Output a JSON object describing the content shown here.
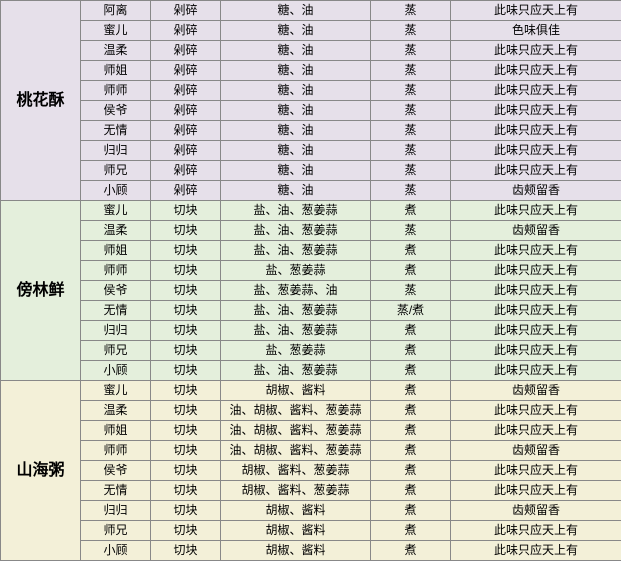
{
  "groups": [
    {
      "dish": "桃花酥",
      "bgClass": "bg-purple",
      "rows": [
        {
          "c1": "阿离",
          "c2": "剁碎",
          "c3": "糖、油",
          "c4": "蒸",
          "c5": "此味只应天上有"
        },
        {
          "c1": "蜜儿",
          "c2": "剁碎",
          "c3": "糖、油",
          "c4": "蒸",
          "c5": "色味俱佳"
        },
        {
          "c1": "温柔",
          "c2": "剁碎",
          "c3": "糖、油",
          "c4": "蒸",
          "c5": "此味只应天上有"
        },
        {
          "c1": "师姐",
          "c2": "剁碎",
          "c3": "糖、油",
          "c4": "蒸",
          "c5": "此味只应天上有"
        },
        {
          "c1": "师师",
          "c2": "剁碎",
          "c3": "糖、油",
          "c4": "蒸",
          "c5": "此味只应天上有"
        },
        {
          "c1": "侯爷",
          "c2": "剁碎",
          "c3": "糖、油",
          "c4": "蒸",
          "c5": "此味只应天上有"
        },
        {
          "c1": "无情",
          "c2": "剁碎",
          "c3": "糖、油",
          "c4": "蒸",
          "c5": "此味只应天上有"
        },
        {
          "c1": "归归",
          "c2": "剁碎",
          "c3": "糖、油",
          "c4": "蒸",
          "c5": "此味只应天上有"
        },
        {
          "c1": "师兄",
          "c2": "剁碎",
          "c3": "糖、油",
          "c4": "蒸",
          "c5": "此味只应天上有"
        },
        {
          "c1": "小顾",
          "c2": "剁碎",
          "c3": "糖、油",
          "c4": "蒸",
          "c5": "齿颊留香"
        }
      ]
    },
    {
      "dish": "傍林鲜",
      "bgClass": "bg-green",
      "rows": [
        {
          "c1": "蜜儿",
          "c2": "切块",
          "c3": "盐、油、葱姜蒜",
          "c4": "煮",
          "c5": "此味只应天上有"
        },
        {
          "c1": "温柔",
          "c2": "切块",
          "c3": "盐、油、葱姜蒜",
          "c4": "蒸",
          "c5": "齿颊留香"
        },
        {
          "c1": "师姐",
          "c2": "切块",
          "c3": "盐、油、葱姜蒜",
          "c4": "煮",
          "c5": "此味只应天上有"
        },
        {
          "c1": "师师",
          "c2": "切块",
          "c3": "盐、葱姜蒜",
          "c4": "煮",
          "c5": "此味只应天上有"
        },
        {
          "c1": "侯爷",
          "c2": "切块",
          "c3": "盐、葱姜蒜、油",
          "c4": "蒸",
          "c5": "此味只应天上有"
        },
        {
          "c1": "无情",
          "c2": "切块",
          "c3": "盐、油、葱姜蒜",
          "c4": "蒸/煮",
          "c5": "此味只应天上有"
        },
        {
          "c1": "归归",
          "c2": "切块",
          "c3": "盐、油、葱姜蒜",
          "c4": "煮",
          "c5": "此味只应天上有"
        },
        {
          "c1": "师兄",
          "c2": "切块",
          "c3": "盐、葱姜蒜",
          "c4": "煮",
          "c5": "此味只应天上有"
        },
        {
          "c1": "小顾",
          "c2": "切块",
          "c3": "盐、油、葱姜蒜",
          "c4": "煮",
          "c5": "此味只应天上有"
        }
      ]
    },
    {
      "dish": "山海粥",
      "bgClass": "bg-yellow",
      "rows": [
        {
          "c1": "蜜儿",
          "c2": "切块",
          "c3": "胡椒、酱料",
          "c4": "煮",
          "c5": "齿颊留香"
        },
        {
          "c1": "温柔",
          "c2": "切块",
          "c3": "油、胡椒、酱料、葱姜蒜",
          "c4": "煮",
          "c5": "此味只应天上有"
        },
        {
          "c1": "师姐",
          "c2": "切块",
          "c3": "油、胡椒、酱料、葱姜蒜",
          "c4": "煮",
          "c5": "此味只应天上有"
        },
        {
          "c1": "师师",
          "c2": "切块",
          "c3": "油、胡椒、酱料、葱姜蒜",
          "c4": "煮",
          "c5": "齿颊留香"
        },
        {
          "c1": "侯爷",
          "c2": "切块",
          "c3": "胡椒、酱料、葱姜蒜",
          "c4": "煮",
          "c5": "此味只应天上有"
        },
        {
          "c1": "无情",
          "c2": "切块",
          "c3": "胡椒、酱料、葱姜蒜",
          "c4": "煮",
          "c5": "此味只应天上有"
        },
        {
          "c1": "归归",
          "c2": "切块",
          "c3": "胡椒、酱料",
          "c4": "煮",
          "c5": "齿颊留香"
        },
        {
          "c1": "师兄",
          "c2": "切块",
          "c3": "胡椒、酱料",
          "c4": "煮",
          "c5": "此味只应天上有"
        },
        {
          "c1": "小顾",
          "c2": "切块",
          "c3": "胡椒、酱料",
          "c4": "煮",
          "c5": "此味只应天上有"
        }
      ]
    }
  ]
}
